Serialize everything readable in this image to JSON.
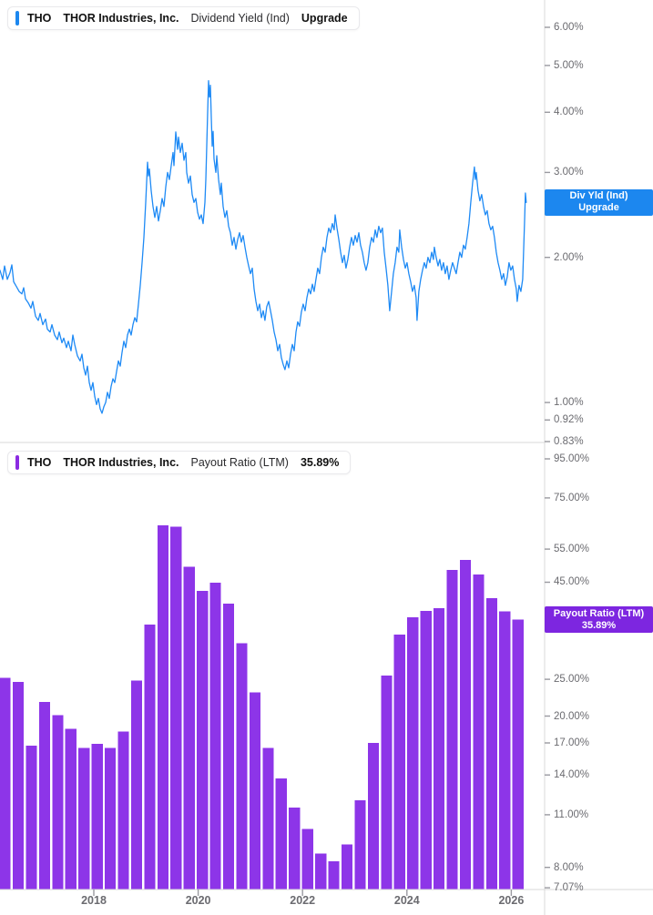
{
  "panels": {
    "dividend_yield": {
      "header": {
        "ticker": "THO",
        "company": "THOR Industries, Inc.",
        "metric": "Dividend Yield (Ind)",
        "value_label": "Upgrade"
      },
      "axis_chip": {
        "line1": "Div Yld (Ind)",
        "line2": "Upgrade"
      },
      "y_ticks": [
        "6.00%",
        "5.00%",
        "4.00%",
        "3.00%",
        "2.00%",
        "1.00%",
        "0.92%",
        "0.83%"
      ]
    },
    "payout_ratio": {
      "header": {
        "ticker": "THO",
        "company": "THOR Industries, Inc.",
        "metric": "Payout Ratio (LTM)",
        "value_label": "35.89%"
      },
      "axis_chip": {
        "line1": "Payout Ratio (LTM)",
        "line2": "35.89%"
      },
      "y_ticks": [
        "95.00%",
        "75.00%",
        "55.00%",
        "45.00%",
        "25.00%",
        "20.00%",
        "17.00%",
        "14.00%",
        "11.00%",
        "8.00%",
        "7.07%"
      ]
    }
  },
  "x_axis": {
    "ticks": [
      "2018",
      "2020",
      "2022",
      "2024",
      "2026"
    ]
  },
  "colors": {
    "line_blue": "#1e8af5",
    "blue_chip": "#1c87ef",
    "bar_purple": "#8d35e8",
    "purple_chip": "#7d26e0",
    "axis_gray": "#d8d8d8",
    "tick_gray": "#9a9aa0",
    "label_gray": "#6b6b70"
  },
  "chart_data": [
    {
      "type": "line",
      "title": "THO THOR Industries, Inc. Dividend Yield (Ind)",
      "ylabel": "Dividend Yield %",
      "scale": "log",
      "grid": false,
      "xlim": [
        2016.2,
        2026.35
      ],
      "y_tick_values": [
        6.0,
        5.0,
        4.0,
        3.0,
        2.0,
        1.0,
        0.92,
        0.83
      ],
      "x_tick_values": [
        2018,
        2020,
        2022,
        2024,
        2026
      ],
      "marker_value": 2.6,
      "points": [
        [
          2016.202,
          1.88
        ],
        [
          2016.255,
          1.8
        ],
        [
          2016.29,
          1.92
        ],
        [
          2016.342,
          1.8
        ],
        [
          2016.394,
          1.86
        ],
        [
          2016.429,
          1.93
        ],
        [
          2016.464,
          1.78
        ],
        [
          2016.517,
          1.74
        ],
        [
          2016.569,
          1.7
        ],
        [
          2016.621,
          1.68
        ],
        [
          2016.656,
          1.73
        ],
        [
          2016.691,
          1.64
        ],
        [
          2016.743,
          1.61
        ],
        [
          2016.796,
          1.57
        ],
        [
          2016.831,
          1.62
        ],
        [
          2016.883,
          1.51
        ],
        [
          2016.935,
          1.48
        ],
        [
          2016.97,
          1.53
        ],
        [
          2017.023,
          1.45
        ],
        [
          2017.075,
          1.49
        ],
        [
          2017.11,
          1.42
        ],
        [
          2017.162,
          1.4
        ],
        [
          2017.197,
          1.45
        ],
        [
          2017.249,
          1.38
        ],
        [
          2017.302,
          1.35
        ],
        [
          2017.337,
          1.4
        ],
        [
          2017.389,
          1.33
        ],
        [
          2017.424,
          1.36
        ],
        [
          2017.476,
          1.3
        ],
        [
          2017.511,
          1.34
        ],
        [
          2017.564,
          1.28
        ],
        [
          2017.598,
          1.38
        ],
        [
          2017.633,
          1.32
        ],
        [
          2017.686,
          1.25
        ],
        [
          2017.738,
          1.22
        ],
        [
          2017.773,
          1.26
        ],
        [
          2017.808,
          1.18
        ],
        [
          2017.843,
          1.14
        ],
        [
          2017.878,
          1.19
        ],
        [
          2017.913,
          1.1
        ],
        [
          2017.948,
          1.06
        ],
        [
          2017.983,
          1.1
        ],
        [
          2018.018,
          1.03
        ],
        [
          2018.052,
          0.99
        ],
        [
          2018.087,
          1.02
        ],
        [
          2018.122,
          0.97
        ],
        [
          2018.157,
          0.95
        ],
        [
          2018.192,
          0.98
        ],
        [
          2018.227,
          1.0
        ],
        [
          2018.262,
          1.05
        ],
        [
          2018.297,
          1.02
        ],
        [
          2018.332,
          1.08
        ],
        [
          2018.367,
          1.12
        ],
        [
          2018.402,
          1.1
        ],
        [
          2018.436,
          1.16
        ],
        [
          2018.471,
          1.22
        ],
        [
          2018.506,
          1.19
        ],
        [
          2018.541,
          1.27
        ],
        [
          2018.576,
          1.34
        ],
        [
          2018.611,
          1.3
        ],
        [
          2018.646,
          1.38
        ],
        [
          2018.681,
          1.42
        ],
        [
          2018.716,
          1.38
        ],
        [
          2018.751,
          1.45
        ],
        [
          2018.785,
          1.5
        ],
        [
          2018.82,
          1.47
        ],
        [
          2018.855,
          1.6
        ],
        [
          2018.89,
          1.75
        ],
        [
          2018.925,
          1.95
        ],
        [
          2018.96,
          2.2
        ],
        [
          2018.995,
          2.6
        ],
        [
          2019.03,
          3.15
        ],
        [
          2019.047,
          2.95
        ],
        [
          2019.065,
          3.05
        ],
        [
          2019.1,
          2.75
        ],
        [
          2019.134,
          2.55
        ],
        [
          2019.169,
          2.42
        ],
        [
          2019.204,
          2.55
        ],
        [
          2019.239,
          2.38
        ],
        [
          2019.274,
          2.5
        ],
        [
          2019.309,
          2.65
        ],
        [
          2019.344,
          2.55
        ],
        [
          2019.379,
          2.8
        ],
        [
          2019.414,
          3.0
        ],
        [
          2019.448,
          2.9
        ],
        [
          2019.483,
          3.1
        ],
        [
          2019.518,
          3.3
        ],
        [
          2019.536,
          3.1
        ],
        [
          2019.571,
          3.64
        ],
        [
          2019.606,
          3.35
        ],
        [
          2019.623,
          3.55
        ],
        [
          2019.658,
          3.3
        ],
        [
          2019.693,
          3.45
        ],
        [
          2019.728,
          3.18
        ],
        [
          2019.763,
          3.3
        ],
        [
          2019.78,
          3.0
        ],
        [
          2019.815,
          2.85
        ],
        [
          2019.85,
          2.95
        ],
        [
          2019.885,
          2.7
        ],
        [
          2019.92,
          2.6
        ],
        [
          2019.954,
          2.65
        ],
        [
          2019.989,
          2.48
        ],
        [
          2020.024,
          2.4
        ],
        [
          2020.059,
          2.45
        ],
        [
          2020.094,
          2.35
        ],
        [
          2020.129,
          2.6
        ],
        [
          2020.146,
          2.9
        ],
        [
          2020.164,
          3.4
        ],
        [
          2020.181,
          4.0
        ],
        [
          2020.199,
          4.65
        ],
        [
          2020.216,
          4.3
        ],
        [
          2020.233,
          4.55
        ],
        [
          2020.251,
          3.9
        ],
        [
          2020.268,
          3.4
        ],
        [
          2020.286,
          3.65
        ],
        [
          2020.303,
          3.2
        ],
        [
          2020.338,
          3.0
        ],
        [
          2020.356,
          3.25
        ],
        [
          2020.391,
          2.9
        ],
        [
          2020.425,
          2.7
        ],
        [
          2020.443,
          2.85
        ],
        [
          2020.478,
          2.55
        ],
        [
          2020.513,
          2.42
        ],
        [
          2020.548,
          2.5
        ],
        [
          2020.583,
          2.32
        ],
        [
          2020.618,
          2.25
        ],
        [
          2020.652,
          2.12
        ],
        [
          2020.687,
          2.2
        ],
        [
          2020.722,
          2.08
        ],
        [
          2020.757,
          2.18
        ],
        [
          2020.792,
          2.25
        ],
        [
          2020.827,
          2.15
        ],
        [
          2020.862,
          2.22
        ],
        [
          2020.897,
          2.1
        ],
        [
          2020.932,
          2.0
        ],
        [
          2020.966,
          1.92
        ],
        [
          2021.001,
          1.85
        ],
        [
          2021.036,
          1.9
        ],
        [
          2021.071,
          1.72
        ],
        [
          2021.106,
          1.62
        ],
        [
          2021.141,
          1.55
        ],
        [
          2021.176,
          1.6
        ],
        [
          2021.211,
          1.5
        ],
        [
          2021.246,
          1.55
        ],
        [
          2021.28,
          1.48
        ],
        [
          2021.315,
          1.58
        ],
        [
          2021.35,
          1.62
        ],
        [
          2021.385,
          1.55
        ],
        [
          2021.42,
          1.48
        ],
        [
          2021.455,
          1.4
        ],
        [
          2021.49,
          1.35
        ],
        [
          2021.525,
          1.28
        ],
        [
          2021.56,
          1.32
        ],
        [
          2021.594,
          1.24
        ],
        [
          2021.629,
          1.2
        ],
        [
          2021.664,
          1.17
        ],
        [
          2021.699,
          1.22
        ],
        [
          2021.734,
          1.18
        ],
        [
          2021.769,
          1.26
        ],
        [
          2021.804,
          1.32
        ],
        [
          2021.839,
          1.28
        ],
        [
          2021.874,
          1.4
        ],
        [
          2021.908,
          1.47
        ],
        [
          2021.943,
          1.44
        ],
        [
          2021.978,
          1.54
        ],
        [
          2022.013,
          1.6
        ],
        [
          2022.048,
          1.55
        ],
        [
          2022.083,
          1.65
        ],
        [
          2022.118,
          1.72
        ],
        [
          2022.153,
          1.68
        ],
        [
          2022.188,
          1.76
        ],
        [
          2022.222,
          1.7
        ],
        [
          2022.257,
          1.8
        ],
        [
          2022.292,
          1.9
        ],
        [
          2022.327,
          1.85
        ],
        [
          2022.362,
          2.0
        ],
        [
          2022.397,
          2.1
        ],
        [
          2022.432,
          2.05
        ],
        [
          2022.467,
          2.2
        ],
        [
          2022.502,
          2.3
        ],
        [
          2022.536,
          2.25
        ],
        [
          2022.571,
          2.35
        ],
        [
          2022.606,
          2.28
        ],
        [
          2022.624,
          2.45
        ],
        [
          2022.659,
          2.3
        ],
        [
          2022.694,
          2.18
        ],
        [
          2022.729,
          2.05
        ],
        [
          2022.764,
          1.95
        ],
        [
          2022.798,
          2.02
        ],
        [
          2022.833,
          1.9
        ],
        [
          2022.868,
          1.98
        ],
        [
          2022.903,
          2.1
        ],
        [
          2022.938,
          2.2
        ],
        [
          2022.973,
          2.12
        ],
        [
          2023.008,
          2.22
        ],
        [
          2023.043,
          2.15
        ],
        [
          2023.078,
          2.25
        ],
        [
          2023.112,
          2.12
        ],
        [
          2023.147,
          2.05
        ],
        [
          2023.182,
          1.95
        ],
        [
          2023.217,
          1.88
        ],
        [
          2023.252,
          1.95
        ],
        [
          2023.287,
          2.1
        ],
        [
          2023.322,
          2.2
        ],
        [
          2023.357,
          2.15
        ],
        [
          2023.392,
          2.28
        ],
        [
          2023.426,
          2.2
        ],
        [
          2023.461,
          2.32
        ],
        [
          2023.496,
          2.25
        ],
        [
          2023.531,
          2.3
        ],
        [
          2023.566,
          2.05
        ],
        [
          2023.601,
          1.9
        ],
        [
          2023.636,
          1.75
        ],
        [
          2023.671,
          1.55
        ],
        [
          2023.706,
          1.7
        ],
        [
          2023.74,
          1.85
        ],
        [
          2023.775,
          1.95
        ],
        [
          2023.81,
          2.1
        ],
        [
          2023.845,
          2.05
        ],
        [
          2023.863,
          2.28
        ],
        [
          2023.898,
          2.1
        ],
        [
          2023.933,
          1.98
        ],
        [
          2023.968,
          1.9
        ],
        [
          2024.002,
          1.95
        ],
        [
          2024.037,
          1.85
        ],
        [
          2024.072,
          1.78
        ],
        [
          2024.107,
          1.7
        ],
        [
          2024.142,
          1.75
        ],
        [
          2024.177,
          1.65
        ],
        [
          2024.194,
          1.48
        ],
        [
          2024.229,
          1.7
        ],
        [
          2024.264,
          1.8
        ],
        [
          2024.299,
          1.88
        ],
        [
          2024.334,
          1.95
        ],
        [
          2024.369,
          1.9
        ],
        [
          2024.404,
          2.0
        ],
        [
          2024.439,
          1.95
        ],
        [
          2024.474,
          2.05
        ],
        [
          2024.508,
          1.98
        ],
        [
          2024.526,
          2.1
        ],
        [
          2024.561,
          2.0
        ],
        [
          2024.596,
          1.92
        ],
        [
          2024.63,
          1.98
        ],
        [
          2024.665,
          1.88
        ],
        [
          2024.7,
          1.95
        ],
        [
          2024.735,
          1.85
        ],
        [
          2024.77,
          1.92
        ],
        [
          2024.805,
          1.8
        ],
        [
          2024.84,
          1.88
        ],
        [
          2024.875,
          1.95
        ],
        [
          2024.91,
          1.9
        ],
        [
          2024.944,
          1.85
        ],
        [
          2024.979,
          1.95
        ],
        [
          2025.014,
          2.05
        ],
        [
          2025.049,
          2.0
        ],
        [
          2025.084,
          2.12
        ],
        [
          2025.119,
          2.08
        ],
        [
          2025.154,
          2.2
        ],
        [
          2025.189,
          2.35
        ],
        [
          2025.224,
          2.6
        ],
        [
          2025.258,
          2.85
        ],
        [
          2025.293,
          3.08
        ],
        [
          2025.311,
          2.9
        ],
        [
          2025.328,
          3.0
        ],
        [
          2025.363,
          2.75
        ],
        [
          2025.398,
          2.62
        ],
        [
          2025.433,
          2.7
        ],
        [
          2025.468,
          2.55
        ],
        [
          2025.503,
          2.45
        ],
        [
          2025.538,
          2.5
        ],
        [
          2025.572,
          2.35
        ],
        [
          2025.607,
          2.28
        ],
        [
          2025.642,
          2.32
        ],
        [
          2025.677,
          2.2
        ],
        [
          2025.712,
          2.05
        ],
        [
          2025.747,
          1.95
        ],
        [
          2025.782,
          1.88
        ],
        [
          2025.817,
          1.8
        ],
        [
          2025.852,
          1.85
        ],
        [
          2025.886,
          1.75
        ],
        [
          2025.921,
          1.82
        ],
        [
          2025.956,
          1.95
        ],
        [
          2025.991,
          1.88
        ],
        [
          2026.026,
          1.92
        ],
        [
          2026.061,
          1.8
        ],
        [
          2026.096,
          1.72
        ],
        [
          2026.113,
          1.62
        ],
        [
          2026.148,
          1.75
        ],
        [
          2026.183,
          1.7
        ],
        [
          2026.218,
          1.8
        ],
        [
          2026.253,
          2.35
        ],
        [
          2026.27,
          2.72
        ],
        [
          2026.287,
          2.6
        ]
      ]
    },
    {
      "type": "bar",
      "title": "THO THOR Industries, Inc. Payout Ratio (LTM)",
      "ylabel": "Payout Ratio %",
      "scale": "log",
      "grid": false,
      "x_start_year": 2016.3,
      "x_step_years": 0.25,
      "y_tick_values": [
        95,
        75,
        55,
        45,
        25,
        20,
        17,
        14,
        11,
        8,
        7.07
      ],
      "x_tick_values": [
        2018,
        2020,
        2022,
        2024,
        2026
      ],
      "current_value": 35.89,
      "values": [
        25.2,
        24.6,
        16.7,
        21.8,
        20.1,
        18.5,
        16.5,
        16.9,
        16.5,
        18.2,
        24.8,
        34.8,
        63.5,
        63.0,
        49.4,
        42.7,
        44.9,
        39.5,
        31.1,
        23.1,
        16.5,
        13.7,
        11.5,
        10.1,
        8.7,
        8.3,
        9.2,
        12.0,
        17.0,
        25.6,
        32.8,
        36.4,
        37.8,
        38.5,
        48.5,
        51.5,
        47.2,
        40.9,
        37.7,
        35.89
      ]
    }
  ]
}
